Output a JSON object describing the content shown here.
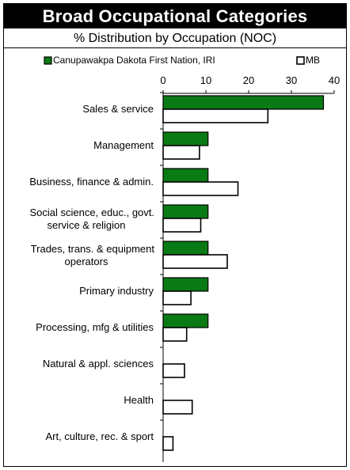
{
  "header": {
    "title": "Broad Occupational Categories",
    "subtitle": "% Distribution by Occupation (NOC)"
  },
  "colors": {
    "community": "#0a7a14",
    "province": "#ffffff",
    "border": "#000000"
  },
  "chart_data": {
    "type": "bar",
    "orientation": "horizontal",
    "title": "Broad Occupational Categories",
    "subtitle": "% Distribution by Occupation (NOC)",
    "xlim": [
      0,
      40
    ],
    "xticks": [
      0,
      10,
      20,
      30,
      40
    ],
    "legend_position": "top",
    "grid": false,
    "categories": [
      [
        "Sales & service"
      ],
      [
        "Management"
      ],
      [
        "Business, finance & admin."
      ],
      [
        "Social science, educ., govt.",
        "service & religion"
      ],
      [
        "Trades, trans. & equipment",
        "operators"
      ],
      [
        "Primary industry"
      ],
      [
        "Processing, mfg & utilities"
      ],
      [
        "Natural & appl. sciences"
      ],
      [
        "Health"
      ],
      [
        "Art, culture, rec. & sport"
      ]
    ],
    "series": [
      {
        "name": "Canupawakpa Dakota First Nation, IRI",
        "values": [
          37.5,
          10.5,
          10.5,
          10.5,
          10.5,
          10.5,
          10.5,
          0,
          0,
          0
        ]
      },
      {
        "name": "MB",
        "values": [
          24.5,
          8.5,
          17.5,
          8.8,
          15.0,
          6.5,
          5.5,
          5.0,
          6.8,
          2.3
        ]
      }
    ]
  }
}
